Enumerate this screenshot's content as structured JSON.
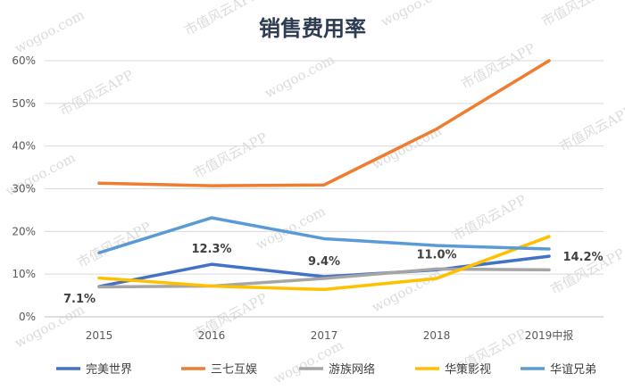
{
  "chart_data": {
    "type": "line",
    "title": "销售费用率",
    "categories": [
      "2015",
      "2016",
      "2017",
      "2018",
      "2019中报"
    ],
    "ylim": [
      0,
      60
    ],
    "yticks": [
      0,
      10,
      20,
      30,
      40,
      50,
      60
    ],
    "ytick_labels": [
      "0%",
      "10%",
      "20%",
      "30%",
      "40%",
      "50%",
      "60%"
    ],
    "legend_position": "bottom",
    "series": [
      {
        "name": "完美世界",
        "color": "#4472c4",
        "values": [
          7.1,
          12.3,
          9.4,
          11.0,
          14.2
        ]
      },
      {
        "name": "三七互娱",
        "color": "#ed7d31",
        "values": [
          31.3,
          30.7,
          30.9,
          44.0,
          60.0
        ]
      },
      {
        "name": "游族网络",
        "color": "#a5a5a5",
        "values": [
          7.0,
          7.2,
          9.0,
          11.2,
          11.0
        ]
      },
      {
        "name": "华策影视",
        "color": "#ffc000",
        "values": [
          9.1,
          7.2,
          6.4,
          9.0,
          18.8
        ]
      },
      {
        "name": "华谊兄弟",
        "color": "#5b9bd5",
        "values": [
          15.0,
          23.2,
          18.3,
          16.7,
          15.9
        ]
      }
    ],
    "data_labels": [
      {
        "series": "完美世界",
        "index": 0,
        "text": "7.1%"
      },
      {
        "series": "完美世界",
        "index": 1,
        "text": "12.3%"
      },
      {
        "series": "完美世界",
        "index": 2,
        "text": "9.4%"
      },
      {
        "series": "完美世界",
        "index": 3,
        "text": "11.0%"
      },
      {
        "series": "完美世界",
        "index": 4,
        "text": "14.2%"
      }
    ]
  },
  "watermark": {
    "site": "wogoo.com",
    "app": "市值风云APP"
  }
}
